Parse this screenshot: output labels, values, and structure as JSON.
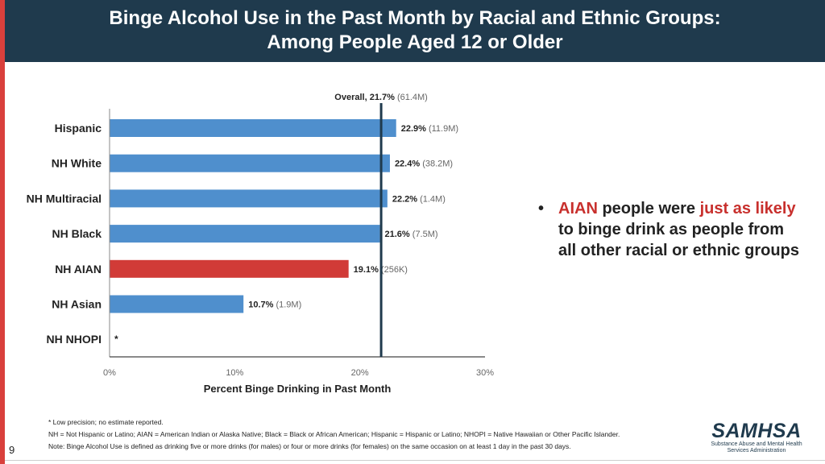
{
  "header": {
    "title_line1": "Binge Alcohol Use in the Past Month by Racial and Ethnic Groups:",
    "title_line2": "Among People Aged 12 or Older"
  },
  "chart_data": {
    "type": "bar",
    "orientation": "horizontal",
    "categories": [
      "Hispanic",
      "NH White",
      "NH Multiracial",
      "NH Black",
      "NH AIAN",
      "NH Asian",
      "NH NHOPI"
    ],
    "values": [
      22.9,
      22.4,
      22.2,
      21.6,
      19.1,
      10.7,
      null
    ],
    "value_labels": [
      "22.9%",
      "22.4%",
      "22.2%",
      "21.6%",
      "19.1%",
      "10.7%",
      "*"
    ],
    "count_labels": [
      "(11.9M)",
      "(38.2M)",
      "(1.4M)",
      "(7.5M)",
      "(256K)",
      "(1.9M)",
      ""
    ],
    "highlight_index": 4,
    "colors": {
      "bar": "#4f8fcd",
      "highlight": "#d13b37",
      "reference_line": "#1f3a4d"
    },
    "reference_line": {
      "value": 21.7,
      "label": "Overall, 21.7%",
      "count": "(61.4M)"
    },
    "xlim": [
      0,
      30
    ],
    "xticks": [
      "0%",
      "10%",
      "20%",
      "30%"
    ],
    "xtick_values": [
      0,
      10,
      20,
      30
    ],
    "xlabel": "Percent Binge Drinking in Past Month",
    "grid": false
  },
  "callout": {
    "bullet": "•",
    "part1": "AIAN",
    "part2": " people were ",
    "part3": "just as likely",
    "part4": " to binge drink as people from all other racial or ethnic groups"
  },
  "notes": {
    "line1": "* Low precision; no estimate reported.",
    "line2": "NH = Not Hispanic or Latino; AIAN = American Indian or Alaska Native; Black = Black or African American; Hispanic = Hispanic or Latino; NHOPI = Native Hawaiian or Other Pacific Islander.",
    "line3": "Note: Binge Alcohol Use is defined as drinking five or more drinks (for males) or four or more drinks (for females) on the same occasion on at least 1 day in the past 30 days."
  },
  "page_number": "9",
  "logo": {
    "name": "SAMHSA",
    "subtitle_line1": "Substance Abuse and Mental Health",
    "subtitle_line2": "Services Administration"
  }
}
